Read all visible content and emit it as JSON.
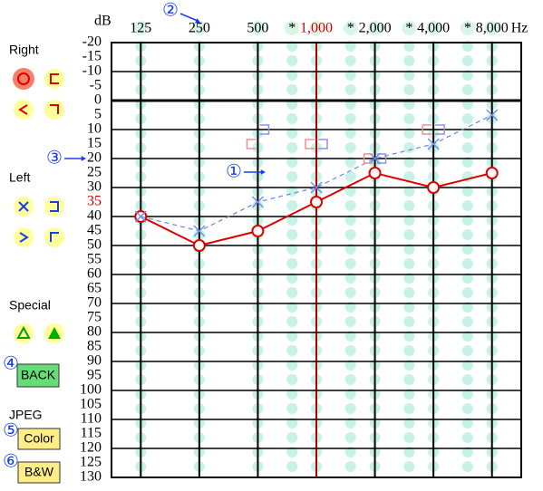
{
  "chart_data": {
    "type": "audiogram",
    "y_unit": "dB",
    "x_unit": "Hz",
    "xscale": "log",
    "xlim": [
      88.39,
      11313.7
    ],
    "xticks": [
      125,
      250,
      500,
      {
        "value": 750,
        "label": "*"
      },
      {
        "value": 1000,
        "label": "1,000"
      },
      {
        "value": 1500,
        "label": "*"
      },
      {
        "value": 2000,
        "label": "2,000"
      },
      {
        "value": 3000,
        "label": "*"
      },
      {
        "value": 4000,
        "label": "4,000"
      },
      {
        "value": 6000,
        "label": "*"
      },
      {
        "value": 8000,
        "label": "8,000"
      }
    ],
    "ylim": [
      -20,
      130
    ],
    "y_inverted": true,
    "yticks": [
      -20,
      -15,
      -10,
      -5,
      0,
      5,
      10,
      15,
      20,
      25,
      30,
      35,
      40,
      45,
      50,
      55,
      60,
      65,
      70,
      75,
      80,
      85,
      90,
      95,
      100,
      105,
      110,
      115,
      120,
      125,
      130
    ],
    "grid": true,
    "series": [
      {
        "name": "Right",
        "color": "#e00000",
        "marker": "circle",
        "line": "solid",
        "x": [
          125,
          250,
          500,
          1000,
          2000,
          4000,
          8000
        ],
        "values": [
          40,
          50,
          45,
          35,
          25,
          30,
          25
        ]
      },
      {
        "name": "Left",
        "color": "#6f8fe8",
        "marker": "cross",
        "line": "dashed",
        "x": [
          125,
          250,
          500,
          1000,
          2000,
          4000,
          8000
        ],
        "values": [
          40,
          45,
          35,
          30,
          20,
          15,
          5
        ]
      },
      {
        "color": "#f09090",
        "marker": "bracket-right-ear",
        "line": "none",
        "x": [
          500,
          1000,
          2000,
          4000
        ],
        "values": [
          15,
          15,
          20,
          10
        ]
      },
      {
        "color": "#9090f0",
        "marker": "bracket-left-ear",
        "line": "none",
        "x": [
          500,
          1000,
          2000,
          4000
        ],
        "values": [
          10,
          15,
          20,
          10
        ]
      }
    ]
  },
  "sidebar": {
    "special": "Special",
    "back": "BACK",
    "jpeg": "JPEG",
    "color": "Color",
    "bw": "B&W"
  },
  "annotations": [
    "①",
    "②",
    "③",
    "④",
    "⑤",
    "⑥"
  ]
}
